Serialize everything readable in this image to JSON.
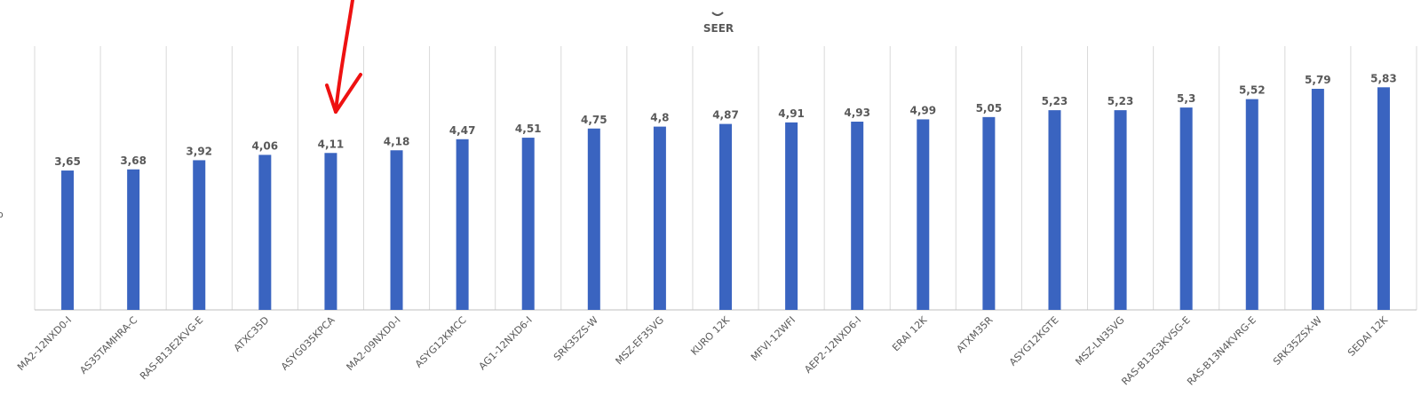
{
  "chart_data": {
    "type": "bar",
    "title": "SEER",
    "categories": [
      "MA2-12NXD0-I",
      "AS35TAMHRA-C",
      "RAS-B13E2KVG-E",
      "ATXC35D",
      "ASYG035KPCA",
      "MA2-09NXD0-I",
      "ASYG12KMCC",
      "AG1-12NXD6-I",
      "SRK35ZS-W",
      "MSZ-EF35VG",
      "KURO 12K",
      "MFVI-12WFI",
      "AEP2-12NXD6-I",
      "ERAI 12K",
      "ATXM35R",
      "ASYG12KGTE",
      "MSZ-LN35VG",
      "RAS-B13G3KVSG-E",
      "RAS-B13N4KVRG-E",
      "SRK35ZSX-W",
      "SEDAI 12K"
    ],
    "values": [
      3.65,
      3.68,
      3.92,
      4.06,
      4.11,
      4.18,
      4.47,
      4.51,
      4.75,
      4.8,
      4.87,
      4.91,
      4.93,
      4.99,
      5.05,
      5.23,
      5.23,
      5.3,
      5.52,
      5.79,
      5.83
    ],
    "value_labels": [
      "3,65",
      "3,68",
      "3,92",
      "4,06",
      "4,11",
      "4,18",
      "4,47",
      "4,51",
      "4,75",
      "4,8",
      "4,87",
      "4,91",
      "4,93",
      "4,99",
      "5,05",
      "5,23",
      "5,23",
      "5,3",
      "5,52",
      "5,79",
      "5,83"
    ],
    "xlabel": "",
    "ylabel": "",
    "ylim": [
      0,
      7
    ],
    "grid": "vertical category separators",
    "legend": "none",
    "annotation": "red hand-drawn arrow pointing down at ASYG035KPCA",
    "colors": {
      "bar": "#3a64c0",
      "text": "#595959",
      "grid": "#d9d9d9",
      "annotation": "#ee1111"
    }
  }
}
